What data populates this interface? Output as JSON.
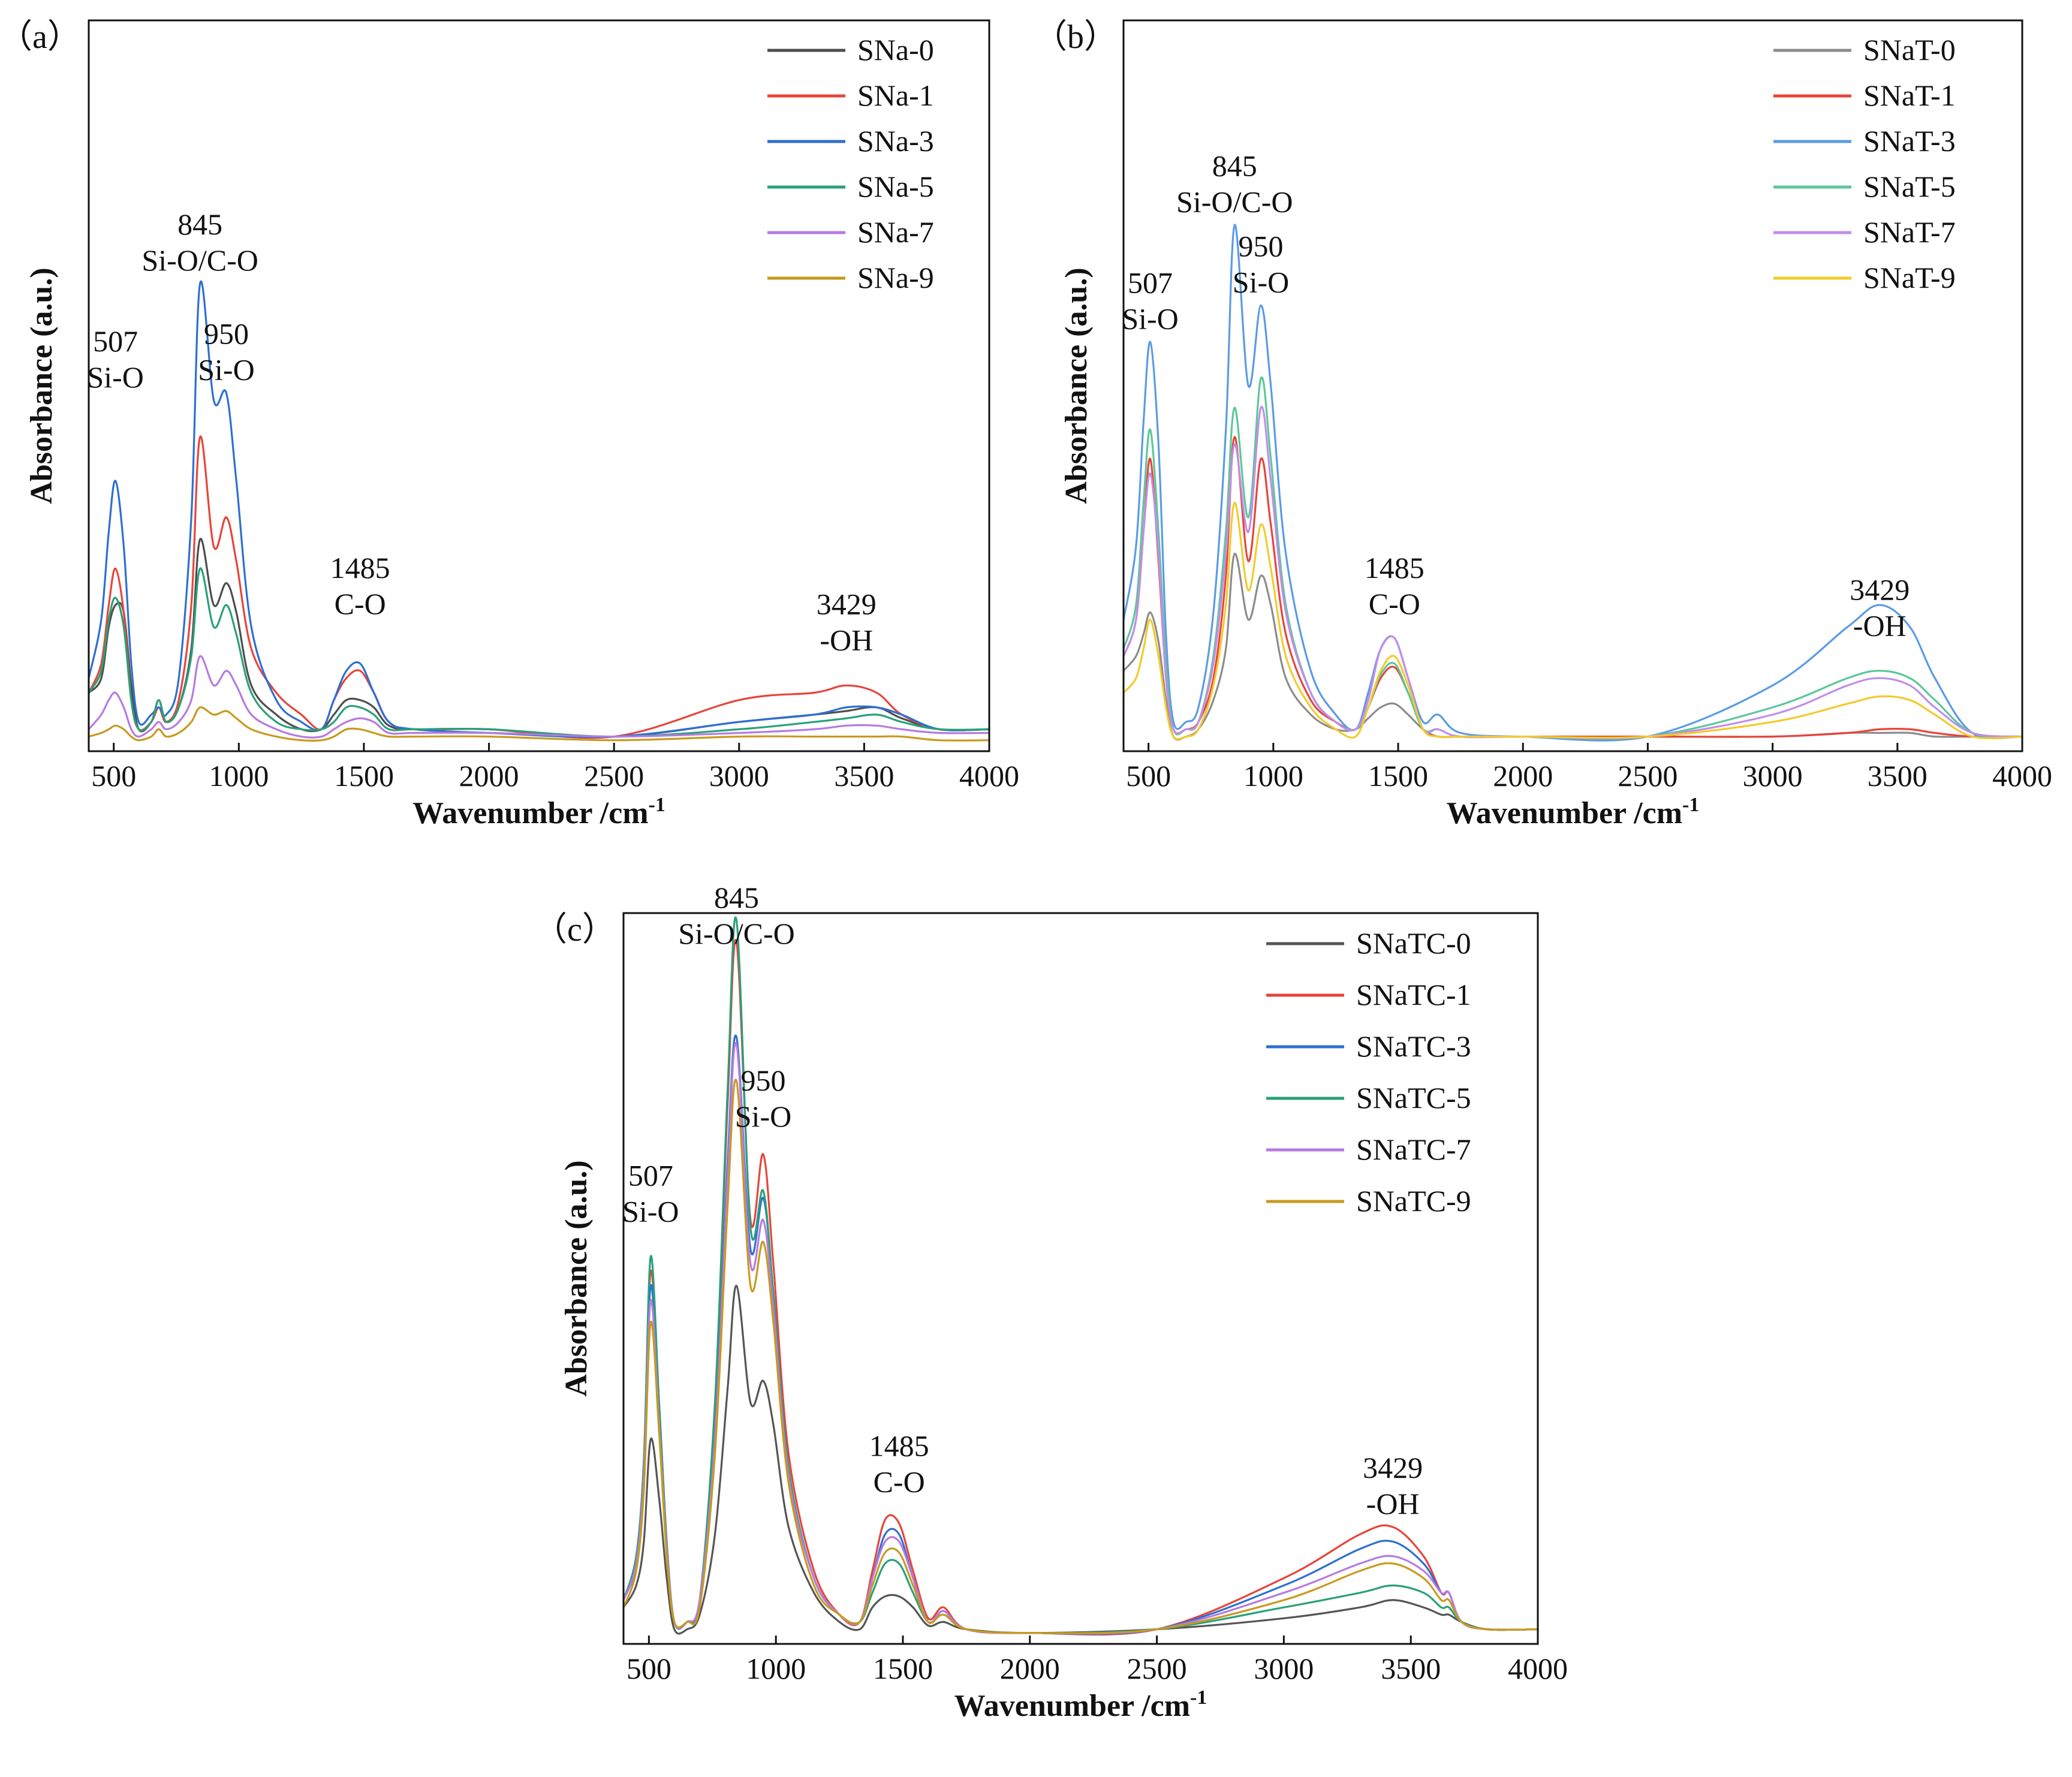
{
  "figure": {
    "background": "#ffffff",
    "axis_color": "#111111"
  },
  "chart_data": [
    {
      "id": "a",
      "type": "line",
      "panel_label": "（a）",
      "xlabel": "Wavenumber /cm",
      "xlabel_sup": "-1",
      "ylabel": "Absorbance (a.u.)",
      "xlim": [
        400,
        4000
      ],
      "ylim": [
        0,
        1
      ],
      "xticks": [
        500,
        1000,
        1500,
        2000,
        2500,
        3000,
        3500,
        4000
      ],
      "legend": {
        "position": "top-right"
      },
      "annotations": [
        {
          "x": 507,
          "y": 0.48,
          "lines": [
            "507",
            "Si-O"
          ]
        },
        {
          "x": 845,
          "y": 0.64,
          "lines": [
            "845",
            "Si-O/C-O"
          ]
        },
        {
          "x": 950,
          "y": 0.49,
          "lines": [
            "950",
            "Si-O"
          ]
        },
        {
          "x": 1485,
          "y": 0.17,
          "lines": [
            "1485",
            "C-O"
          ]
        },
        {
          "x": 3429,
          "y": 0.12,
          "lines": [
            "3429",
            "-OH"
          ]
        }
      ],
      "x": [
        400,
        450,
        480,
        507,
        540,
        570,
        600,
        650,
        680,
        710,
        760,
        810,
        845,
        900,
        950,
        990,
        1050,
        1150,
        1250,
        1330,
        1380,
        1430,
        1485,
        1540,
        1600,
        1700,
        2000,
        2500,
        3000,
        3300,
        3429,
        3550,
        3650,
        3800,
        4000
      ],
      "series": [
        {
          "name": "SNa-0",
          "color": "#4d4d4d",
          "values": [
            0.08,
            0.1,
            0.17,
            0.2,
            0.19,
            0.09,
            0.03,
            0.04,
            0.07,
            0.04,
            0.06,
            0.14,
            0.29,
            0.2,
            0.23,
            0.19,
            0.09,
            0.05,
            0.03,
            0.03,
            0.05,
            0.07,
            0.07,
            0.06,
            0.035,
            0.03,
            0.03,
            0.02,
            0.04,
            0.05,
            0.055,
            0.06,
            0.045,
            0.03,
            0.03
          ]
        },
        {
          "name": "SNa-1",
          "color": "#e8443a",
          "values": [
            0.08,
            0.12,
            0.2,
            0.25,
            0.19,
            0.07,
            0.03,
            0.04,
            0.06,
            0.04,
            0.07,
            0.2,
            0.43,
            0.28,
            0.32,
            0.26,
            0.14,
            0.08,
            0.05,
            0.03,
            0.07,
            0.1,
            0.11,
            0.08,
            0.04,
            0.03,
            0.03,
            0.02,
            0.07,
            0.08,
            0.09,
            0.08,
            0.05,
            0.03,
            0.03
          ]
        },
        {
          "name": "SNa-3",
          "color": "#2e6fd2",
          "values": [
            0.1,
            0.18,
            0.3,
            0.37,
            0.28,
            0.12,
            0.04,
            0.05,
            0.06,
            0.05,
            0.1,
            0.32,
            0.64,
            0.48,
            0.49,
            0.37,
            0.17,
            0.07,
            0.04,
            0.03,
            0.07,
            0.11,
            0.12,
            0.08,
            0.04,
            0.03,
            0.025,
            0.02,
            0.04,
            0.05,
            0.06,
            0.06,
            0.05,
            0.03,
            0.03
          ]
        },
        {
          "name": "SNa-5",
          "color": "#2aa07a",
          "values": [
            0.08,
            0.11,
            0.18,
            0.21,
            0.17,
            0.07,
            0.03,
            0.04,
            0.07,
            0.04,
            0.06,
            0.13,
            0.25,
            0.17,
            0.2,
            0.16,
            0.08,
            0.04,
            0.03,
            0.03,
            0.04,
            0.06,
            0.06,
            0.05,
            0.03,
            0.03,
            0.03,
            0.02,
            0.03,
            0.04,
            0.045,
            0.05,
            0.04,
            0.03,
            0.03
          ]
        },
        {
          "name": "SNa-7",
          "color": "#b57be0",
          "values": [
            0.03,
            0.05,
            0.07,
            0.08,
            0.06,
            0.03,
            0.02,
            0.03,
            0.04,
            0.03,
            0.04,
            0.07,
            0.13,
            0.09,
            0.11,
            0.09,
            0.05,
            0.03,
            0.02,
            0.02,
            0.03,
            0.04,
            0.045,
            0.04,
            0.025,
            0.025,
            0.025,
            0.02,
            0.025,
            0.03,
            0.035,
            0.035,
            0.03,
            0.025,
            0.025
          ]
        },
        {
          "name": "SNa-9",
          "color": "#c89a1e",
          "values": [
            0.02,
            0.025,
            0.03,
            0.035,
            0.03,
            0.02,
            0.015,
            0.02,
            0.03,
            0.02,
            0.025,
            0.04,
            0.06,
            0.05,
            0.055,
            0.045,
            0.03,
            0.02,
            0.015,
            0.015,
            0.02,
            0.03,
            0.03,
            0.025,
            0.02,
            0.02,
            0.02,
            0.015,
            0.02,
            0.02,
            0.02,
            0.02,
            0.02,
            0.015,
            0.015
          ]
        }
      ]
    },
    {
      "id": "b",
      "type": "line",
      "panel_label": "（b）",
      "xlabel": "Wavenumber /cm",
      "xlabel_sup": "-1",
      "ylabel": "Absorbance (a.u.)",
      "xlim": [
        400,
        4000
      ],
      "ylim": [
        0,
        1
      ],
      "xticks": [
        500,
        1000,
        1500,
        2000,
        2500,
        3000,
        3500,
        4000
      ],
      "legend": {
        "position": "top-right"
      },
      "annotations": [
        {
          "x": 507,
          "y": 0.56,
          "lines": [
            "507",
            "Si-O"
          ]
        },
        {
          "x": 845,
          "y": 0.72,
          "lines": [
            "845",
            "Si-O/C-O"
          ]
        },
        {
          "x": 950,
          "y": 0.61,
          "lines": [
            "950",
            "Si-O"
          ]
        },
        {
          "x": 1485,
          "y": 0.17,
          "lines": [
            "1485",
            "C-O"
          ]
        },
        {
          "x": 3429,
          "y": 0.14,
          "lines": [
            "3429",
            "-OH"
          ]
        }
      ],
      "x": [
        400,
        450,
        480,
        507,
        540,
        570,
        600,
        650,
        700,
        760,
        810,
        845,
        900,
        950,
        990,
        1050,
        1150,
        1250,
        1330,
        1380,
        1430,
        1485,
        1540,
        1600,
        1660,
        1750,
        2000,
        2500,
        3000,
        3300,
        3429,
        3550,
        3650,
        3800,
        4000
      ],
      "series": [
        {
          "name": "SNaT-0",
          "color": "#8c8c8c",
          "values": [
            0.11,
            0.13,
            0.16,
            0.19,
            0.15,
            0.07,
            0.02,
            0.02,
            0.03,
            0.07,
            0.14,
            0.27,
            0.18,
            0.24,
            0.2,
            0.1,
            0.05,
            0.03,
            0.03,
            0.045,
            0.06,
            0.065,
            0.05,
            0.03,
            0.02,
            0.02,
            0.02,
            0.02,
            0.02,
            0.025,
            0.025,
            0.025,
            0.02,
            0.02,
            0.02
          ]
        },
        {
          "name": "SNaT-1",
          "color": "#e8443a",
          "values": [
            0.13,
            0.18,
            0.3,
            0.4,
            0.26,
            0.1,
            0.03,
            0.03,
            0.04,
            0.1,
            0.24,
            0.43,
            0.26,
            0.4,
            0.31,
            0.16,
            0.07,
            0.04,
            0.03,
            0.06,
            0.1,
            0.115,
            0.08,
            0.03,
            0.02,
            0.02,
            0.02,
            0.02,
            0.02,
            0.025,
            0.03,
            0.03,
            0.025,
            0.02,
            0.02
          ]
        },
        {
          "name": "SNaT-3",
          "color": "#5a9be6",
          "values": [
            0.18,
            0.28,
            0.45,
            0.56,
            0.42,
            0.16,
            0.04,
            0.04,
            0.06,
            0.19,
            0.44,
            0.72,
            0.5,
            0.61,
            0.5,
            0.27,
            0.11,
            0.05,
            0.03,
            0.08,
            0.14,
            0.155,
            0.1,
            0.04,
            0.05,
            0.025,
            0.02,
            0.02,
            0.09,
            0.17,
            0.2,
            0.17,
            0.1,
            0.025,
            0.02
          ]
        },
        {
          "name": "SNaT-5",
          "color": "#5cc79a",
          "values": [
            0.14,
            0.2,
            0.34,
            0.44,
            0.3,
            0.12,
            0.03,
            0.03,
            0.04,
            0.13,
            0.3,
            0.47,
            0.32,
            0.51,
            0.4,
            0.2,
            0.08,
            0.04,
            0.03,
            0.06,
            0.105,
            0.12,
            0.08,
            0.03,
            0.03,
            0.02,
            0.02,
            0.02,
            0.06,
            0.1,
            0.11,
            0.1,
            0.07,
            0.025,
            0.02
          ]
        },
        {
          "name": "SNaT-7",
          "color": "#c18ee8",
          "values": [
            0.13,
            0.18,
            0.3,
            0.38,
            0.27,
            0.1,
            0.03,
            0.03,
            0.04,
            0.12,
            0.27,
            0.42,
            0.3,
            0.47,
            0.37,
            0.19,
            0.08,
            0.04,
            0.03,
            0.07,
            0.14,
            0.155,
            0.1,
            0.03,
            0.03,
            0.02,
            0.02,
            0.02,
            0.05,
            0.09,
            0.1,
            0.09,
            0.06,
            0.025,
            0.02
          ]
        },
        {
          "name": "SNaT-9",
          "color": "#f2cb2c",
          "values": [
            0.08,
            0.1,
            0.14,
            0.18,
            0.13,
            0.06,
            0.02,
            0.02,
            0.03,
            0.09,
            0.2,
            0.34,
            0.22,
            0.31,
            0.25,
            0.13,
            0.06,
            0.03,
            0.02,
            0.06,
            0.11,
            0.13,
            0.09,
            0.03,
            0.02,
            0.02,
            0.02,
            0.02,
            0.04,
            0.065,
            0.075,
            0.07,
            0.05,
            0.02,
            0.02
          ]
        }
      ]
    },
    {
      "id": "c",
      "type": "line",
      "panel_label": "（c）",
      "xlabel": "Wavenumber /cm",
      "xlabel_sup": "-1",
      "ylabel": "Absorbance (a.u.)",
      "xlim": [
        400,
        4000
      ],
      "ylim": [
        0,
        1
      ],
      "xticks": [
        500,
        1000,
        1500,
        2000,
        2500,
        3000,
        3500,
        4000
      ],
      "legend": {
        "position": "top-right"
      },
      "annotations": [
        {
          "x": 507,
          "y": 0.56,
          "lines": [
            "507",
            "Si-O"
          ]
        },
        {
          "x": 845,
          "y": 0.94,
          "lines": [
            "845",
            "Si-O/C-O"
          ]
        },
        {
          "x": 950,
          "y": 0.69,
          "lines": [
            "950",
            "Si-O"
          ]
        },
        {
          "x": 1485,
          "y": 0.19,
          "lines": [
            "1485",
            "C-O"
          ]
        },
        {
          "x": 3429,
          "y": 0.16,
          "lines": [
            "3429",
            "-OH"
          ]
        }
      ],
      "x": [
        400,
        450,
        480,
        507,
        540,
        570,
        600,
        650,
        700,
        760,
        810,
        845,
        900,
        950,
        990,
        1050,
        1150,
        1250,
        1330,
        1380,
        1430,
        1485,
        1540,
        1600,
        1660,
        1750,
        2000,
        2500,
        3000,
        3300,
        3429,
        3550,
        3620,
        3650,
        3700,
        3800,
        4000
      ],
      "series": [
        {
          "name": "SNaTC-0",
          "color": "#555555",
          "values": [
            0.05,
            0.08,
            0.14,
            0.28,
            0.2,
            0.09,
            0.02,
            0.02,
            0.04,
            0.15,
            0.35,
            0.49,
            0.33,
            0.36,
            0.3,
            0.16,
            0.07,
            0.03,
            0.02,
            0.05,
            0.065,
            0.065,
            0.05,
            0.025,
            0.03,
            0.02,
            0.015,
            0.02,
            0.035,
            0.05,
            0.06,
            0.05,
            0.04,
            0.04,
            0.03,
            0.02,
            0.02
          ]
        },
        {
          "name": "SNaTC-1",
          "color": "#e8443a",
          "values": [
            0.06,
            0.12,
            0.25,
            0.51,
            0.33,
            0.14,
            0.03,
            0.03,
            0.06,
            0.32,
            0.74,
            0.96,
            0.58,
            0.67,
            0.52,
            0.26,
            0.1,
            0.04,
            0.03,
            0.1,
            0.17,
            0.165,
            0.1,
            0.035,
            0.05,
            0.02,
            0.015,
            0.02,
            0.09,
            0.15,
            0.16,
            0.12,
            0.07,
            0.07,
            0.03,
            0.02,
            0.02
          ]
        },
        {
          "name": "SNaTC-3",
          "color": "#2e6fd2",
          "values": [
            0.06,
            0.11,
            0.24,
            0.49,
            0.32,
            0.13,
            0.03,
            0.03,
            0.06,
            0.28,
            0.66,
            0.83,
            0.54,
            0.61,
            0.48,
            0.24,
            0.09,
            0.04,
            0.03,
            0.09,
            0.15,
            0.15,
            0.09,
            0.03,
            0.045,
            0.02,
            0.015,
            0.02,
            0.08,
            0.13,
            0.14,
            0.11,
            0.07,
            0.07,
            0.03,
            0.02,
            0.02
          ]
        },
        {
          "name": "SNaTC-5",
          "color": "#2aa07a",
          "values": [
            0.06,
            0.12,
            0.25,
            0.53,
            0.33,
            0.14,
            0.03,
            0.03,
            0.06,
            0.33,
            0.76,
            0.99,
            0.57,
            0.62,
            0.48,
            0.24,
            0.09,
            0.04,
            0.03,
            0.07,
            0.11,
            0.11,
            0.07,
            0.03,
            0.04,
            0.02,
            0.015,
            0.02,
            0.05,
            0.07,
            0.08,
            0.07,
            0.05,
            0.05,
            0.03,
            0.02,
            0.02
          ]
        },
        {
          "name": "SNaTC-7",
          "color": "#b57be0",
          "values": [
            0.06,
            0.11,
            0.23,
            0.47,
            0.3,
            0.13,
            0.03,
            0.03,
            0.06,
            0.28,
            0.64,
            0.82,
            0.52,
            0.58,
            0.46,
            0.23,
            0.09,
            0.04,
            0.03,
            0.09,
            0.14,
            0.14,
            0.09,
            0.03,
            0.045,
            0.02,
            0.015,
            0.02,
            0.07,
            0.11,
            0.12,
            0.1,
            0.07,
            0.07,
            0.03,
            0.02,
            0.02
          ]
        },
        {
          "name": "SNaTC-9",
          "color": "#c89a1e",
          "values": [
            0.05,
            0.1,
            0.21,
            0.44,
            0.29,
            0.12,
            0.03,
            0.03,
            0.05,
            0.26,
            0.6,
            0.77,
            0.49,
            0.55,
            0.44,
            0.22,
            0.08,
            0.04,
            0.03,
            0.08,
            0.125,
            0.125,
            0.08,
            0.03,
            0.04,
            0.02,
            0.015,
            0.02,
            0.06,
            0.1,
            0.11,
            0.09,
            0.06,
            0.06,
            0.03,
            0.02,
            0.02
          ]
        }
      ]
    }
  ]
}
